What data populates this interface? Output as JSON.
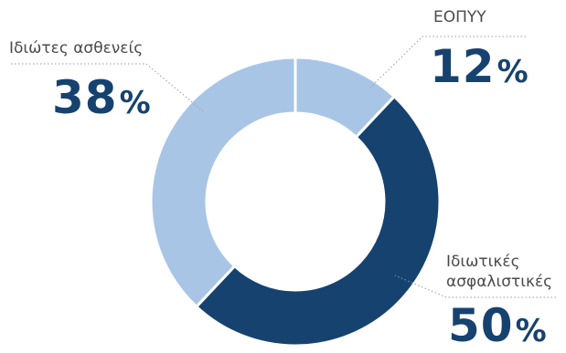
{
  "chart_data": {
    "type": "pie",
    "donut": true,
    "slices": [
      {
        "label": "ΕΟΠΥΥ",
        "value": 12,
        "display": "12",
        "color": "#a9c5e6"
      },
      {
        "label_lines": [
          "Ιδιωτικές",
          "ασφαλιστικές"
        ],
        "value": 50,
        "display": "50",
        "color": "#16426f"
      },
      {
        "label": "Ιδιώτες ασθενείς",
        "value": 38,
        "display": "38",
        "color": "#a9c5e6"
      }
    ],
    "percent_sign": "%"
  }
}
